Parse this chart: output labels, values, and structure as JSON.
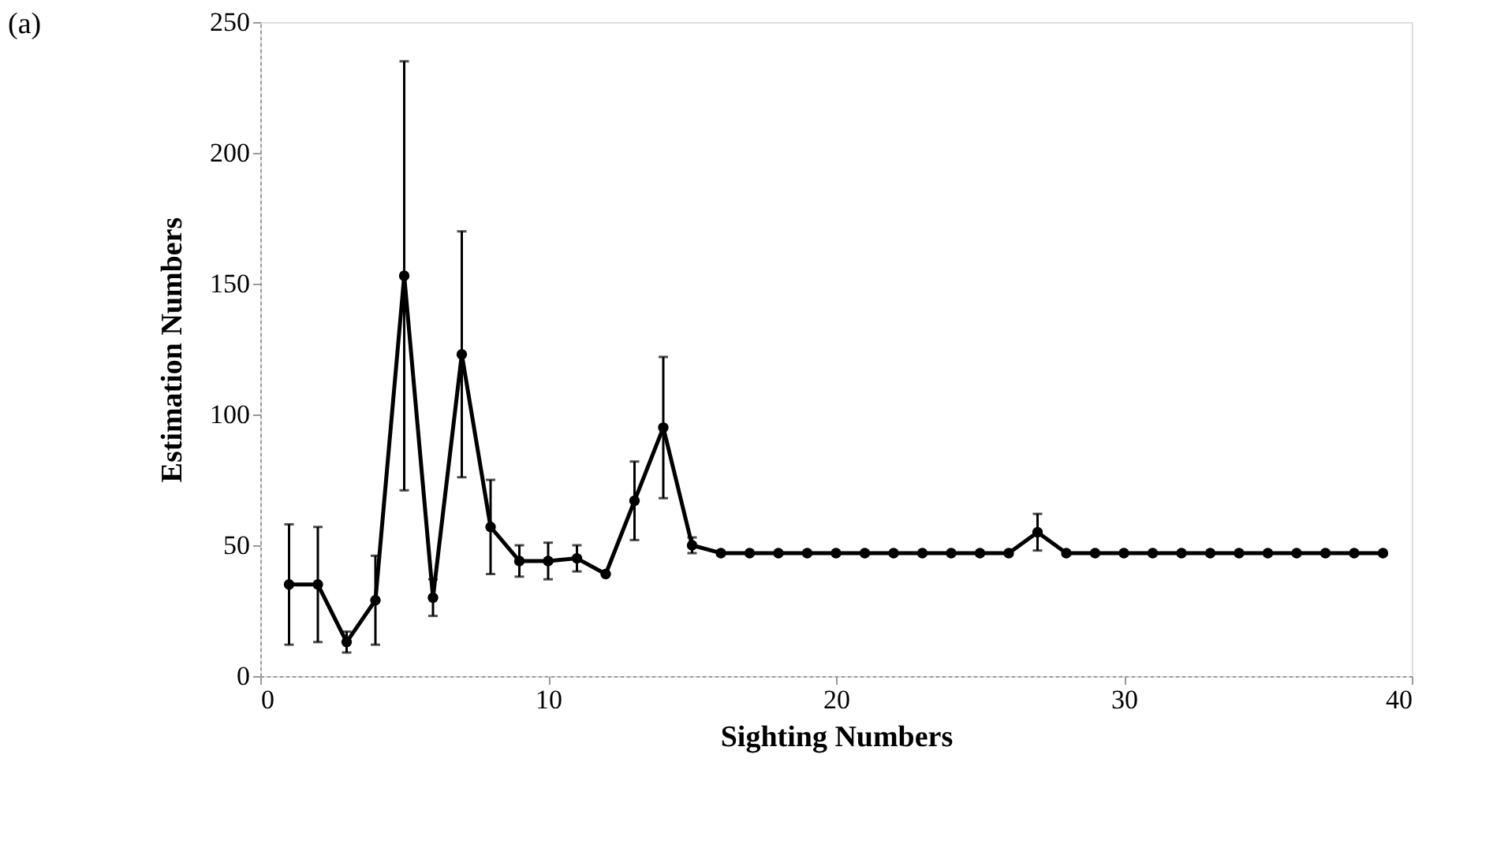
{
  "chart_data": {
    "type": "line",
    "xlabel": "Sighting Numbers",
    "ylabel": "Estimation Numbers",
    "annotations": [
      "(a)"
    ],
    "x": [
      1,
      2,
      3,
      4,
      5,
      6,
      7,
      8,
      9,
      10,
      11,
      12,
      13,
      14,
      15,
      16,
      17,
      18,
      19,
      20,
      21,
      22,
      23,
      24,
      25,
      26,
      27,
      28,
      29,
      30,
      31,
      32,
      33,
      34,
      35,
      36,
      37,
      38,
      39
    ],
    "series": [
      {
        "color": "#000000",
        "values": [
          35,
          35,
          13,
          29,
          153,
          30,
          123,
          57,
          44,
          44,
          45,
          39,
          67,
          95,
          50,
          47,
          47,
          47,
          47,
          47,
          47,
          47,
          47,
          47,
          47,
          47,
          55,
          47,
          47,
          47,
          47,
          47,
          47,
          47,
          47,
          47,
          47,
          47,
          47
        ],
        "errors": [
          23,
          22,
          4,
          17,
          82,
          7,
          47,
          18,
          6,
          7,
          5,
          null,
          15,
          27,
          3,
          null,
          null,
          null,
          null,
          null,
          null,
          null,
          null,
          null,
          null,
          null,
          7,
          null,
          null,
          null,
          null,
          null,
          null,
          null,
          null,
          null,
          null,
          null,
          null
        ]
      }
    ],
    "xlim": [
      0,
      40
    ],
    "xticks": [
      0,
      10,
      20,
      30,
      40
    ],
    "ylim": [
      0,
      250
    ],
    "yticks": [
      0,
      50,
      100,
      150,
      200,
      250
    ],
    "marker": "circle",
    "line_style": "solid",
    "grid": false
  }
}
